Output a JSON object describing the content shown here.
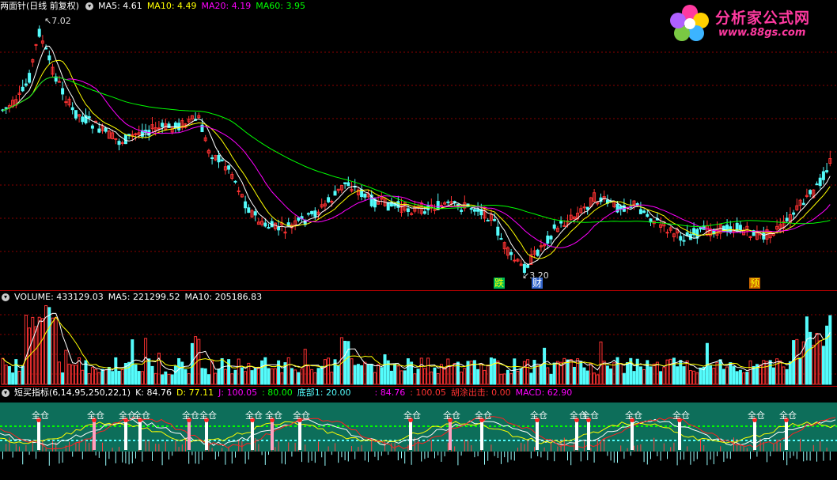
{
  "price_header": {
    "title": "两面针(日线 前复权)",
    "ma5": "MA5: 4.61",
    "ma10": "MA10: 4.49",
    "ma20": "MA20: 4.19",
    "ma60": "MA60: 3.95"
  },
  "price_labels": {
    "high": "7.02",
    "low": "3.20"
  },
  "markers": {
    "m1": "跌",
    "m2": "财",
    "m3": "预"
  },
  "logo": {
    "title": "分析家公式网",
    "url": "www.88gs.com"
  },
  "volume_header": {
    "volume": "VOLUME: 433129.03",
    "ma5": "MA5: 221299.52",
    "ma10": "MA10: 205186.83"
  },
  "indicator_header": {
    "name": "短买指标(6,14,95,250,22,1)",
    "k": "K: 84.76",
    "d": "D: 77.11",
    "j": "J: 100.05",
    "v80": ": 80.00",
    "bottom": "底部1: 20.00",
    "v1": ": 84.76",
    "v2": ": 100.05",
    "exit": "胡涂出击: 0.00",
    "macd": "MACD: 62.90"
  },
  "indicator_labels": {
    "full_position": "全仓"
  },
  "colors": {
    "up": "#ff3232",
    "down": "#54fcfc",
    "ma5": "#ffffff",
    "ma10": "#ffff00",
    "ma20": "#ff00ff",
    "ma60": "#00ff00",
    "indicator_bg": "#0d6e5a",
    "grid": "#8b0000"
  }
}
